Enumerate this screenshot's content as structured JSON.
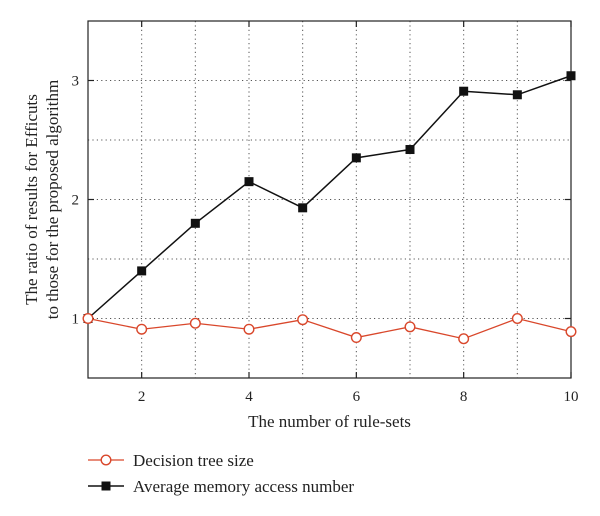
{
  "chart_data": {
    "type": "line",
    "x": [
      1,
      2,
      3,
      4,
      5,
      6,
      7,
      8,
      9,
      10
    ],
    "xlim": [
      1,
      10
    ],
    "ylim": [
      0.5,
      3.5
    ],
    "xticks": [
      2,
      4,
      6,
      8,
      10
    ],
    "xtick_labels": [
      "2",
      "4",
      "6",
      "8",
      "10"
    ],
    "yticks": [
      1,
      2,
      3
    ],
    "ytick_labels": [
      "1",
      "2",
      "3"
    ],
    "xgrid": [
      2,
      3,
      4,
      5,
      6,
      7,
      8,
      9
    ],
    "ygrid": [
      1,
      1.5,
      2,
      2.5,
      3
    ],
    "grid": true,
    "xlabel": "The number of rule-sets",
    "ylabel_line1": "The ratio of results for Efficuts",
    "ylabel_line2": "to those for the proposed algorithm",
    "legend_position": "bottom-left, below plot",
    "series": [
      {
        "name": "Decision tree size",
        "color": "#d9472b",
        "marker": "open-circle",
        "values": [
          1.0,
          0.91,
          0.96,
          0.91,
          0.99,
          0.84,
          0.93,
          0.83,
          1.0,
          0.89
        ]
      },
      {
        "name": "Average memory access number",
        "color": "#111111",
        "marker": "filled-square",
        "values": [
          1.0,
          1.4,
          1.8,
          2.15,
          1.93,
          2.35,
          2.42,
          2.91,
          2.88,
          3.04
        ]
      }
    ]
  }
}
